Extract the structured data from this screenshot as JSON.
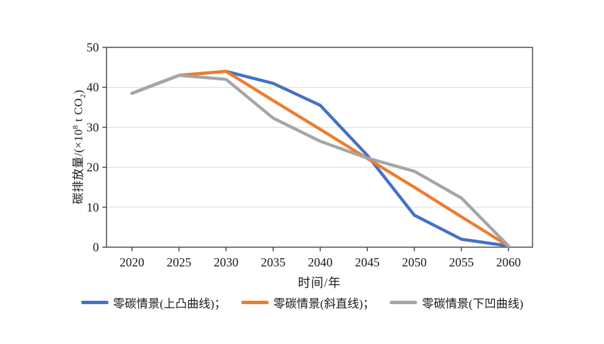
{
  "figure": {
    "background": "#ffffff"
  },
  "chart_data": {
    "type": "line",
    "title": "",
    "xlabel": "时间/年",
    "ylabel": "碳排放量/(×10⁸ t CO₂)",
    "ylabel_parts": {
      "pre": "碳排放量/(×10",
      "sup": "8",
      "mid": " t CO",
      "sub": "2",
      "post": ")"
    },
    "x": [
      2020,
      2025,
      2030,
      2035,
      2040,
      2045,
      2050,
      2055,
      2060
    ],
    "ylim": [
      0,
      50
    ],
    "yticks": [
      0,
      10,
      20,
      30,
      40,
      50
    ],
    "grid": "horizontal",
    "grid_color": "#d9d9d9",
    "axis_color": "#404040",
    "text_color": "#1a1a1a",
    "legend_position": "bottom-center",
    "series": [
      {
        "name": "零碳情景(上凸曲线)；",
        "shape": "concave-down",
        "color": "#4472C4",
        "values": [
          38.5,
          43,
          44,
          41,
          35.5,
          23,
          8,
          2,
          0.3
        ]
      },
      {
        "name": "零碳情景(斜直线)；",
        "shape": "straight",
        "color": "#ED7D31",
        "values": [
          38.5,
          43,
          44,
          36.7,
          29.5,
          22.2,
          15,
          7.6,
          0.3
        ]
      },
      {
        "name": "零碳情景(下凹曲线)",
        "shape": "concave-up",
        "color": "#A5A5A5",
        "values": [
          38.5,
          43,
          42,
          32.3,
          26.5,
          22.3,
          19,
          12.3,
          0.3
        ]
      }
    ]
  }
}
